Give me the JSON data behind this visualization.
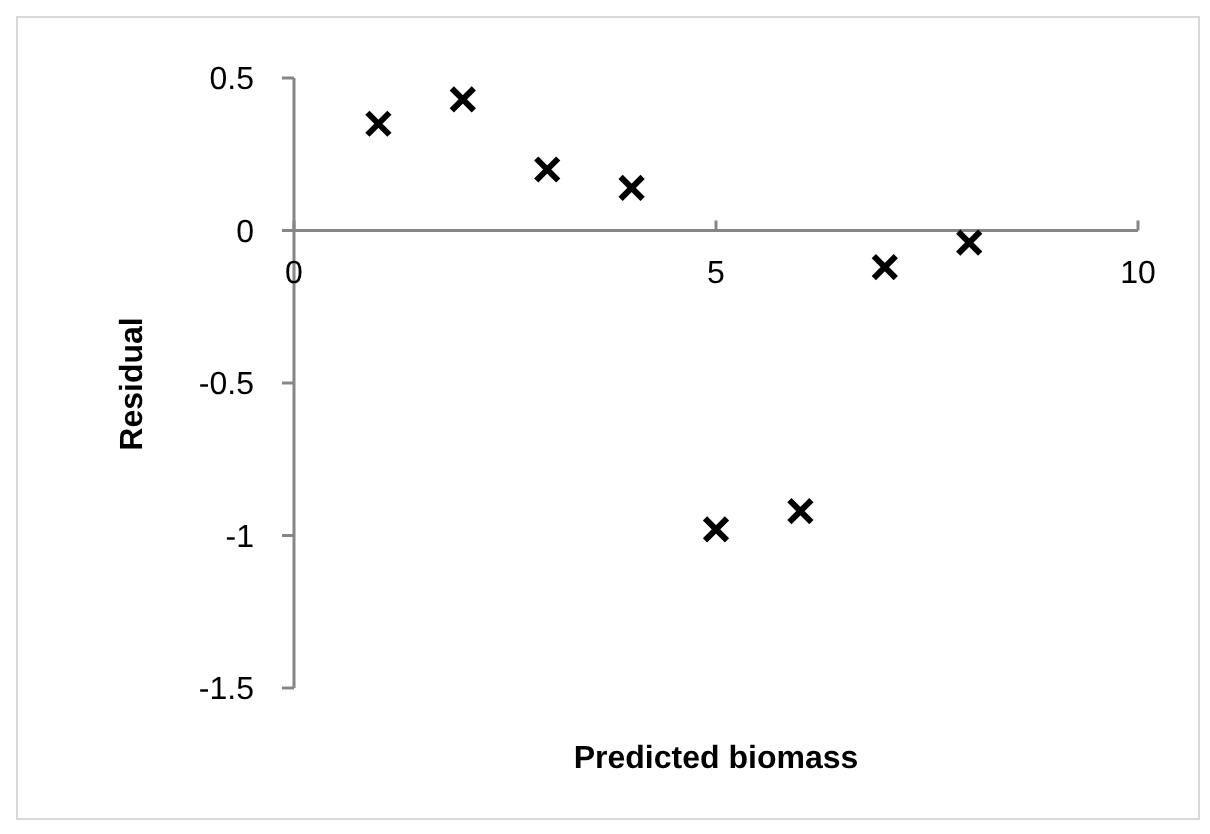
{
  "chart_data": {
    "type": "scatter",
    "xlabel": "Predicted biomass",
    "ylabel": "Residual",
    "x": [
      1,
      2,
      3,
      4,
      5,
      6,
      7,
      8
    ],
    "values": [
      0.35,
      0.43,
      0.2,
      0.14,
      -0.98,
      -0.92,
      -0.12,
      -0.04
    ],
    "color": "#000000",
    "marker": "cross",
    "xlim": [
      0,
      10
    ],
    "xticks": [
      0,
      5,
      10
    ],
    "ylim": [
      -1.5,
      0.5
    ],
    "yticks": [
      -1.5,
      -1,
      -0.5,
      0,
      0.5
    ]
  }
}
